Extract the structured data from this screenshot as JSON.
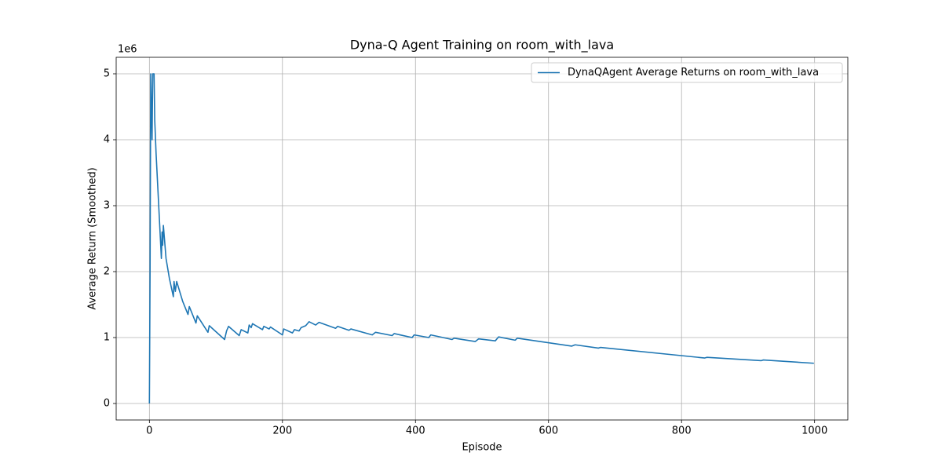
{
  "chart_data": {
    "type": "line",
    "title": "Dyna-Q Agent Training on room_with_lava",
    "x_label": "Episode",
    "y_label": "Average Return (Smoothed)",
    "y_offset_label": "1e6",
    "x": [
      0,
      1,
      2,
      4,
      5,
      7,
      8,
      10,
      14,
      18,
      19,
      20,
      21,
      25,
      30,
      36,
      37,
      39,
      41,
      50,
      58,
      60,
      70,
      72,
      88,
      90,
      113,
      116,
      119,
      135,
      138,
      148,
      150,
      153,
      155,
      170,
      172,
      180,
      182,
      200,
      202,
      215,
      218,
      225,
      228,
      235,
      240,
      250,
      255,
      280,
      283,
      300,
      303,
      335,
      340,
      365,
      368,
      395,
      398,
      420,
      423,
      455,
      458,
      490,
      495,
      520,
      525,
      550,
      553,
      635,
      640,
      675,
      678,
      835,
      838,
      920,
      923,
      999
    ],
    "series": [
      {
        "name": "DynaQAgent Average Returns on room_with_lava",
        "color": "#1f77b4",
        "values": [
          0,
          2,
          5,
          4,
          5,
          5,
          4.3,
          3.8,
          3,
          2.2,
          2.6,
          2.4,
          2.7,
          2.2,
          1.9,
          1.62,
          1.85,
          1.7,
          1.85,
          1.55,
          1.35,
          1.47,
          1.22,
          1.33,
          1.08,
          1.18,
          0.97,
          1.1,
          1.17,
          1.03,
          1.12,
          1.07,
          1.19,
          1.15,
          1.21,
          1.12,
          1.17,
          1.13,
          1.16,
          1.04,
          1.13,
          1.07,
          1.12,
          1.1,
          1.15,
          1.18,
          1.24,
          1.19,
          1.23,
          1.14,
          1.17,
          1.11,
          1.13,
          1.04,
          1.08,
          1.03,
          1.06,
          1.0,
          1.04,
          1.0,
          1.04,
          0.97,
          0.99,
          0.94,
          0.98,
          0.95,
          1.01,
          0.96,
          0.99,
          0.87,
          0.89,
          0.84,
          0.85,
          0.69,
          0.7,
          0.65,
          0.66,
          0.61
        ]
      }
    ],
    "xlim": [
      -49.95,
      1049.95
    ],
    "ylim": [
      -0.25,
      5.25
    ],
    "xticks": [
      0,
      200,
      400,
      600,
      800,
      1000
    ],
    "yticks": [
      0,
      1,
      2,
      3,
      4,
      5
    ],
    "grid": true,
    "legend": "upper right"
  }
}
